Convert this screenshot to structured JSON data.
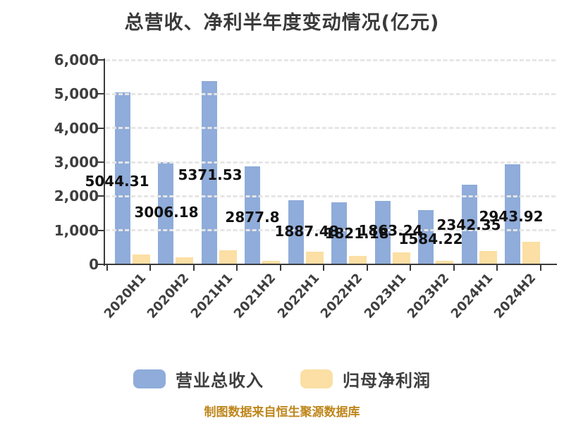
{
  "header": {
    "title": "总营收、净利半年度变动情况(亿元)"
  },
  "chart_data": {
    "type": "bar",
    "title": "总营收、净利半年度变动情况(亿元)",
    "unit": "亿元",
    "categories": [
      "2020H1",
      "2020H2",
      "2021H1",
      "2021H2",
      "2022H1",
      "2022H2",
      "2023H1",
      "2023H2",
      "2024H1",
      "2024H2"
    ],
    "series": [
      {
        "name": "营业总收入",
        "color": "#8FACDA",
        "values": [
          5044.31,
          3006.18,
          5371.53,
          2877.8,
          1887.48,
          1821.18,
          1863.24,
          1584.22,
          2342.35,
          2943.92
        ],
        "value_labels": [
          "5044.31",
          "3006.18",
          "5371.53",
          "2877.8",
          "1887.48",
          "1821.18",
          "1863.24",
          "1584.22",
          "2342.35",
          "2943.92"
        ]
      },
      {
        "name": "归母净利润",
        "color": "#FBDFA4",
        "values": [
          300,
          205,
          410,
          100,
          380,
          255,
          345,
          100,
          390,
          655
        ],
        "values_estimated": true
      }
    ],
    "ylim": [
      0,
      6000
    ],
    "ytick_step": 1000,
    "ytick_labels": [
      "0",
      "1,000",
      "2,000",
      "3,000",
      "4,000",
      "5,000",
      "6,000"
    ],
    "grid": "horizontal-dashed",
    "legend_position": "bottom"
  },
  "legend": {
    "items": [
      {
        "label": "营业总收入",
        "color": "#8FACDA"
      },
      {
        "label": "归母净利润",
        "color": "#FBDFA4"
      }
    ]
  },
  "footer": {
    "text": "制图数据来自恒生聚源数据库"
  },
  "colors": {
    "background": "#FFFFFF",
    "axis": "#3A3A3A",
    "tick_text": "#3F3F3F",
    "value_label_text": "#111111",
    "gridline": "#E6E6E6",
    "revenue_bar": "#8FACDA",
    "profit_bar": "#FBDFA4",
    "footer_text": "#BE861B"
  }
}
